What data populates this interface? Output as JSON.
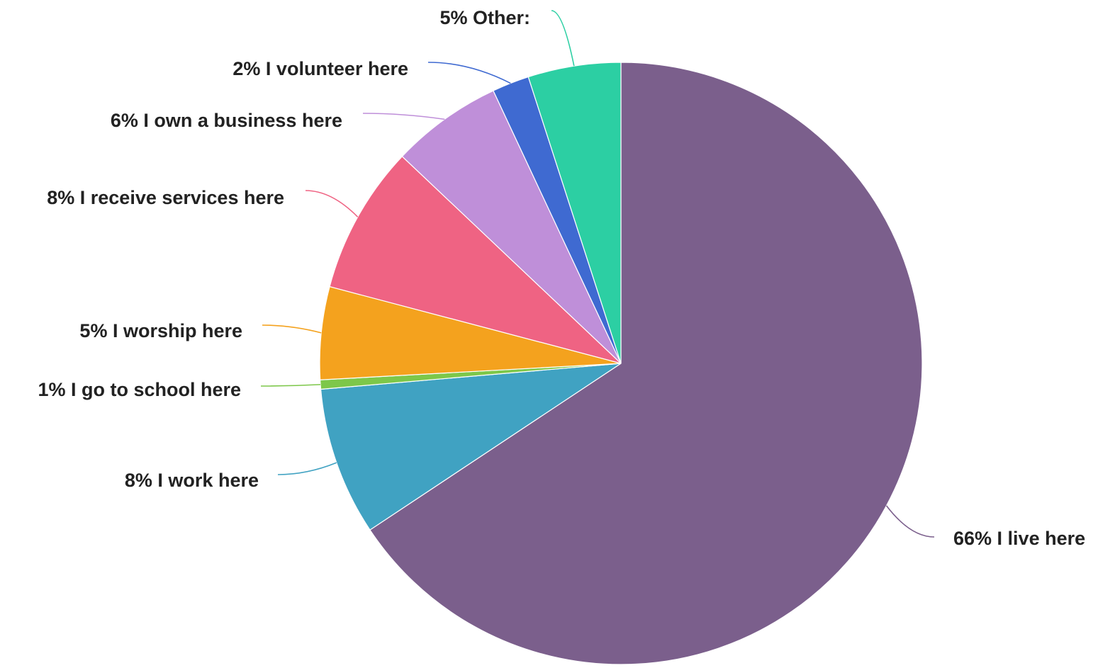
{
  "chart_data": {
    "type": "pie",
    "start_angle_deg": 0,
    "direction": "clockwise",
    "slices": [
      {
        "label": "I live here",
        "value": 66,
        "display": "66% I live here",
        "color": "#7b5f8c"
      },
      {
        "label": "I work here",
        "value": 8,
        "display": "8% I work here",
        "color": "#40a2c2"
      },
      {
        "label": "I go to school here",
        "value": 0.5,
        "display": "1% I go to school here",
        "color": "#7dc74a"
      },
      {
        "label": "I worship here",
        "value": 5,
        "display": "5% I worship here",
        "color": "#f4a21e"
      },
      {
        "label": "I receive services here",
        "value": 8,
        "display": "8% I receive services here",
        "color": "#ef6383"
      },
      {
        "label": "I own a business here",
        "value": 6,
        "display": "6% I own a business here",
        "color": "#bf8fd9"
      },
      {
        "label": "I volunteer here",
        "value": 2,
        "display": "2% I volunteer here",
        "color": "#3f6ad1"
      },
      {
        "label": "Other:",
        "value": 5,
        "display": "5% Other:",
        "color": "#2ccfa3"
      }
    ]
  }
}
